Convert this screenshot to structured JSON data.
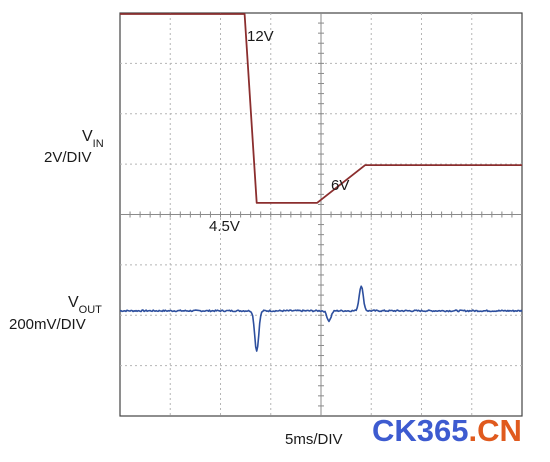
{
  "chart_data": {
    "type": "line",
    "title": "",
    "xlabel": "5ms/DIV",
    "grid": true,
    "x_unit": "ms",
    "x_range": [
      0,
      50
    ],
    "series": [
      {
        "name": "VIN",
        "scale_label": [
          "V",
          "IN",
          "2V/DIV"
        ],
        "color": "#8b2e2e",
        "points": [
          [
            0,
            12
          ],
          [
            15.5,
            12
          ],
          [
            17.0,
            4.5
          ],
          [
            24.5,
            4.5
          ],
          [
            30.5,
            6
          ],
          [
            50,
            6
          ]
        ],
        "annotations": [
          {
            "text": "12V",
            "x": 15.5,
            "y": 12
          },
          {
            "text": "4.5V",
            "x": 17.0,
            "y": 4.5
          },
          {
            "text": "6V",
            "x": 27.5,
            "y": 6
          }
        ]
      },
      {
        "name": "VOUT",
        "scale_label": [
          "V",
          "OUT",
          "200mV/DIV"
        ],
        "color": "#2d4f9e",
        "baseline": 0,
        "transients": [
          {
            "x": 17.0,
            "dip_mV": -160
          },
          {
            "x": 26.0,
            "dip_mV": -40
          },
          {
            "x": 30.0,
            "spike_mV": 100
          }
        ]
      }
    ]
  },
  "watermark": {
    "text_main": "CK365",
    "text_dot": ".",
    "text_suffix": "CN",
    "color_main": "#3d5bd0",
    "color_suffix": "#e05a1e"
  }
}
